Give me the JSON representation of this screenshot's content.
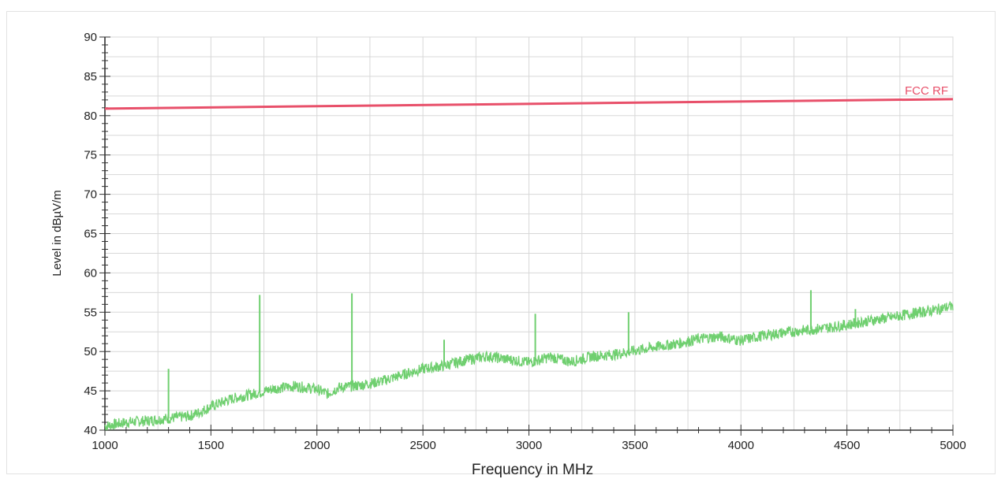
{
  "chart_data": {
    "type": "line",
    "xlabel": "Frequency in MHz",
    "ylabel": "Level in dBµV/m",
    "xlim": [
      1000,
      5000
    ],
    "ylim": [
      40,
      90
    ],
    "x_ticks": [
      "1000",
      "1500",
      "2000",
      "2500",
      "3000",
      "3500",
      "4000",
      "4500",
      "5000"
    ],
    "y_ticks": [
      "40",
      "45",
      "50",
      "55",
      "60",
      "65",
      "70",
      "75",
      "80",
      "85",
      "90"
    ],
    "grid": true,
    "series": [
      {
        "name": "FCC RF",
        "color": "#e8506a",
        "x": [
          1000,
          5000
        ],
        "y": [
          80.9,
          82.1
        ]
      },
      {
        "color": "#6fcf6f",
        "x": [
          1000,
          1100,
          1200,
          1300,
          1400,
          1450,
          1500,
          1600,
          1700,
          1800,
          1900,
          2000,
          2050,
          2100,
          2200,
          2300,
          2400,
          2500,
          2600,
          2700,
          2800,
          2900,
          3000,
          3100,
          3200,
          3300,
          3400,
          3500,
          3600,
          3700,
          3800,
          3900,
          4000,
          4100,
          4200,
          4300,
          4400,
          4500,
          4600,
          4700,
          4800,
          4900,
          5000
        ],
        "y": [
          40.5,
          41.0,
          41.2,
          41.5,
          41.8,
          42.3,
          43.0,
          44.0,
          44.6,
          45.3,
          45.6,
          45.2,
          44.6,
          45.4,
          45.7,
          46.2,
          47.0,
          47.8,
          48.2,
          48.9,
          49.4,
          49.0,
          48.6,
          49.3,
          48.7,
          49.4,
          49.6,
          50.1,
          50.6,
          51.0,
          51.6,
          51.9,
          51.4,
          52.0,
          52.4,
          52.7,
          53.0,
          53.4,
          53.9,
          54.3,
          54.8,
          55.2,
          55.8
        ]
      }
    ],
    "spikes": [
      {
        "x": 1300,
        "y": 47.8
      },
      {
        "x": 1730,
        "y": 57.2
      },
      {
        "x": 2165,
        "y": 57.4
      },
      {
        "x": 2600,
        "y": 51.5
      },
      {
        "x": 3030,
        "y": 54.8
      },
      {
        "x": 3470,
        "y": 55.0
      },
      {
        "x": 4330,
        "y": 57.8
      },
      {
        "x": 4540,
        "y": 55.4
      }
    ]
  }
}
